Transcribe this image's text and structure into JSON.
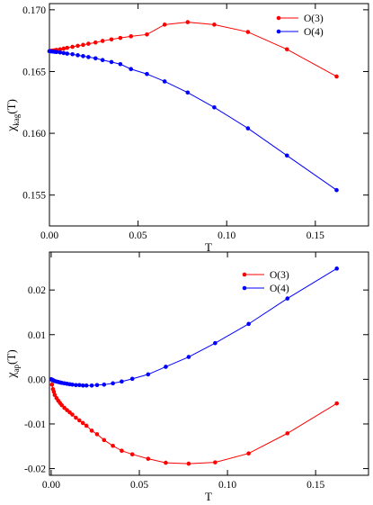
{
  "colors": {
    "O3": "#ff0000",
    "O4": "#0000ff",
    "axis": "#000000"
  },
  "chart_data": [
    {
      "type": "line",
      "title": "",
      "xlabel": "T",
      "ylabel": {
        "main": "χ",
        "sub": "kag",
        "suffix": "(T)"
      },
      "xlim": [
        0,
        0.18
      ],
      "ylim": [
        0.1525,
        0.1705
      ],
      "xticks": [
        0,
        0.05,
        0.1,
        0.15
      ],
      "xtick_labels": [
        "0.00",
        "0.05",
        "0.10",
        "0.15"
      ],
      "yticks": [
        0.155,
        0.16,
        0.165,
        0.17
      ],
      "ytick_labels": [
        "0.155",
        "0.160",
        "0.165",
        "0.170"
      ],
      "grid": false,
      "legend_position": "top-right",
      "series": [
        {
          "name": "O(3)",
          "color": "#ff0000",
          "x": [
            0.0,
            0.001,
            0.002,
            0.003,
            0.004,
            0.006,
            0.008,
            0.01,
            0.013,
            0.016,
            0.019,
            0.022,
            0.026,
            0.03,
            0.035,
            0.04,
            0.046,
            0.055,
            0.065,
            0.078,
            0.093,
            0.112,
            0.134,
            0.162
          ],
          "y": [
            0.16665,
            0.16668,
            0.1667,
            0.16672,
            0.16675,
            0.1668,
            0.16686,
            0.16692,
            0.167,
            0.16708,
            0.16716,
            0.16725,
            0.16735,
            0.16748,
            0.1676,
            0.16772,
            0.16785,
            0.168,
            0.1688,
            0.169,
            0.1688,
            0.1682,
            0.1668,
            0.1646
          ]
        },
        {
          "name": "O(4)",
          "color": "#0000ff",
          "x": [
            0.0,
            0.001,
            0.002,
            0.003,
            0.004,
            0.006,
            0.008,
            0.01,
            0.013,
            0.016,
            0.019,
            0.022,
            0.026,
            0.03,
            0.035,
            0.04,
            0.046,
            0.055,
            0.065,
            0.078,
            0.093,
            0.112,
            0.134,
            0.162
          ],
          "y": [
            0.16665,
            0.16663,
            0.16662,
            0.1666,
            0.16658,
            0.16655,
            0.1665,
            0.16645,
            0.1664,
            0.16632,
            0.16625,
            0.16617,
            0.16607,
            0.16593,
            0.16577,
            0.1656,
            0.1652,
            0.1648,
            0.1642,
            0.1633,
            0.1621,
            0.1604,
            0.1582,
            0.1554
          ]
        }
      ]
    },
    {
      "type": "line",
      "title": "",
      "xlabel": "T",
      "ylabel": {
        "main": "χ",
        "sub": "ap",
        "suffix": "(T)"
      },
      "xlim": [
        -0.001,
        0.18
      ],
      "ylim": [
        -0.0215,
        0.0285
      ],
      "xticks": [
        0,
        0.05,
        0.1,
        0.15
      ],
      "xtick_labels": [
        "0.00",
        "0.05",
        "0.10",
        "0.15"
      ],
      "yticks": [
        -0.02,
        -0.01,
        0.0,
        0.01,
        0.02
      ],
      "ytick_labels": [
        "-0.02",
        "-0.01",
        "0.00",
        "0.01",
        "0.02"
      ],
      "grid": false,
      "legend_position": "top-right",
      "series": [
        {
          "name": "O(3)",
          "color": "#ff0000",
          "x": [
            0.0,
            0.0005,
            0.001,
            0.0015,
            0.002,
            0.003,
            0.004,
            0.005,
            0.006,
            0.0075,
            0.009,
            0.0105,
            0.012,
            0.014,
            0.016,
            0.018,
            0.02,
            0.023,
            0.026,
            0.03,
            0.035,
            0.04,
            0.046,
            0.055,
            0.065,
            0.078,
            0.093,
            0.112,
            0.134,
            0.162
          ],
          "y": [
            0.0,
            -0.0012,
            -0.0022,
            -0.0028,
            -0.0035,
            -0.0042,
            -0.0048,
            -0.0053,
            -0.0058,
            -0.0064,
            -0.0069,
            -0.0074,
            -0.0079,
            -0.0086,
            -0.0092,
            -0.0098,
            -0.0104,
            -0.0115,
            -0.0123,
            -0.0136,
            -0.0149,
            -0.016,
            -0.0168,
            -0.0178,
            -0.0187,
            -0.0189,
            -0.0186,
            -0.0166,
            -0.0121,
            -0.0054
          ]
        },
        {
          "name": "O(4)",
          "color": "#0000ff",
          "x": [
            0.0,
            0.0005,
            0.001,
            0.0015,
            0.002,
            0.003,
            0.004,
            0.005,
            0.006,
            0.0075,
            0.009,
            0.0105,
            0.012,
            0.014,
            0.016,
            0.018,
            0.02,
            0.023,
            0.026,
            0.03,
            0.035,
            0.04,
            0.046,
            0.055,
            0.065,
            0.078,
            0.093,
            0.112,
            0.134,
            0.162
          ],
          "y": [
            0.0,
            -0.0001,
            -0.0002,
            -0.0003,
            -0.0004,
            -0.0005,
            -0.0006,
            -0.0007,
            -0.0008,
            -0.0009,
            -0.001,
            -0.0011,
            -0.0012,
            -0.0013,
            -0.0013,
            -0.0014,
            -0.0014,
            -0.0014,
            -0.0013,
            -0.0012,
            -0.0009,
            -0.0005,
            0.0001,
            0.0011,
            0.0028,
            0.005,
            0.0081,
            0.0124,
            0.0181,
            0.0248
          ]
        }
      ]
    }
  ]
}
